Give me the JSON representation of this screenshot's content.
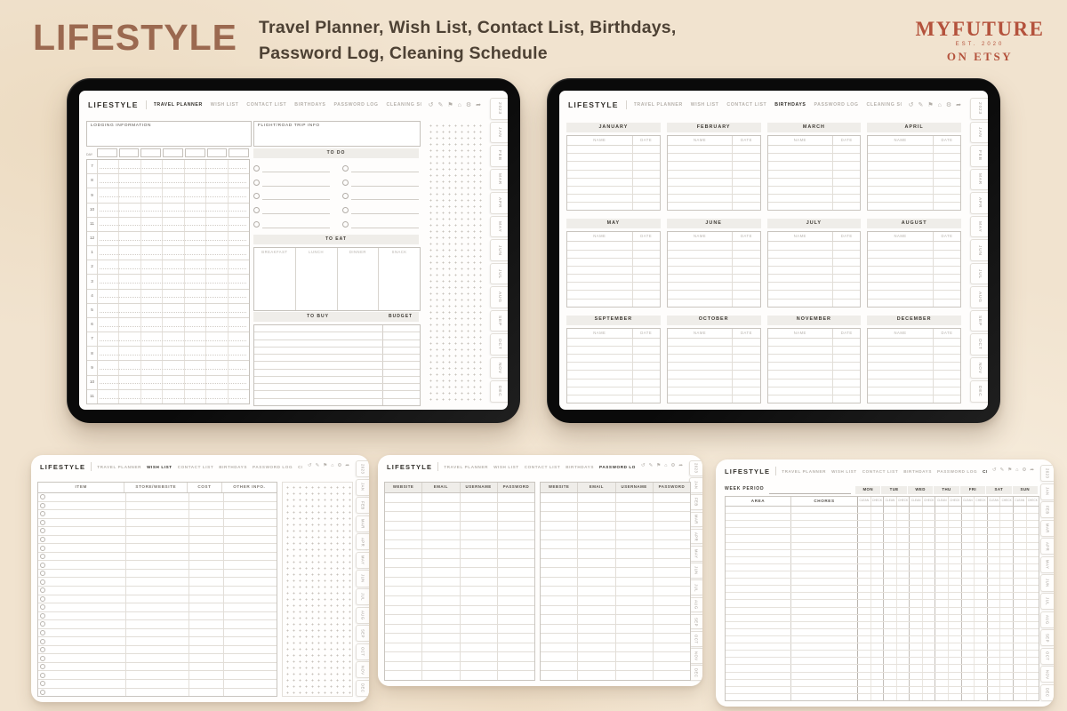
{
  "header": {
    "title": "LIFESTYLE",
    "subtitle_line1": "Travel Planner, Wish List, Contact List, Birthdays,",
    "subtitle_line2": "Password Log, Cleaning Schedule",
    "logo_brand": "MYFUTURE",
    "logo_est": "EST. 2020",
    "logo_store": "ON ETSY"
  },
  "colors": {
    "title_brown": "#9b6950",
    "logo_rust": "#b4523c",
    "background_cream": "#f1e3cf",
    "planner_ink": "#33302b",
    "muted_gray": "#b7b2ac"
  },
  "planner": {
    "brand": "LIFESTYLE",
    "nav": [
      "TRAVEL PLANNER",
      "WISH LIST",
      "CONTACT LIST",
      "BIRTHDAYS",
      "PASSWORD LOG",
      "CLEANING SCHEDULE"
    ],
    "side_tabs": [
      "2023",
      "JAN",
      "FEB",
      "MAR",
      "APR",
      "MAY",
      "JUN",
      "JUL",
      "AUG",
      "SEP",
      "OCT",
      "NOV",
      "DEC"
    ],
    "toolbar_icons": [
      {
        "name": "undo-icon",
        "glyph": "↺"
      },
      {
        "name": "pen-icon",
        "glyph": "✎"
      },
      {
        "name": "bookmark-icon",
        "glyph": "⚑"
      },
      {
        "name": "home-icon",
        "glyph": "⌂"
      },
      {
        "name": "settings-icon",
        "glyph": "⚙"
      },
      {
        "name": "share-icon",
        "glyph": "➦"
      }
    ]
  },
  "travel_planner": {
    "active_tab": "TRAVEL PLANNER",
    "lodging_label": "LODGING INFORMATION",
    "flight_label": "FLIGHT/ROAD TRIP INFO",
    "day_label": "DAY",
    "time_rows": [
      "7",
      "8",
      "9",
      "10",
      "11",
      "12",
      "1",
      "2",
      "3",
      "4",
      "5",
      "6",
      "7",
      "8",
      "9",
      "10",
      "11"
    ],
    "todo_label": "TO DO",
    "eat_label": "TO EAT",
    "eat_columns": [
      "BREAKFAST",
      "LUNCH",
      "DINNER",
      "SNACK"
    ],
    "buy_label": "TO BUY",
    "budget_label": "BUDGET"
  },
  "birthdays": {
    "active_tab": "BIRTHDAYS",
    "name_label": "NAME",
    "date_label": "DATE",
    "months": [
      "JANUARY",
      "FEBRUARY",
      "MARCH",
      "APRIL",
      "MAY",
      "JUNE",
      "JULY",
      "AUGUST",
      "SEPTEMBER",
      "OCTOBER",
      "NOVEMBER",
      "DECEMBER"
    ]
  },
  "wish_list": {
    "active_tab": "WISH LIST",
    "columns": [
      "ITEM",
      "STORE/WEBSITE",
      "COST",
      "OTHER INFO."
    ]
  },
  "password_log": {
    "active_tab": "PASSWORD LOG",
    "columns": [
      "WEBSITE",
      "EMAIL",
      "USERNAME",
      "PASSWORD"
    ]
  },
  "cleaning_schedule": {
    "active_tab": "CLEANING SCHEDULE",
    "week_period_label": "WEEK PERIOD",
    "area_label": "AREA",
    "chores_label": "CHORES",
    "days": [
      "MON",
      "TUE",
      "WED",
      "THU",
      "FRI",
      "SAT",
      "SUN"
    ],
    "day_sub_columns": [
      "CLEAN",
      "CHECK"
    ]
  }
}
